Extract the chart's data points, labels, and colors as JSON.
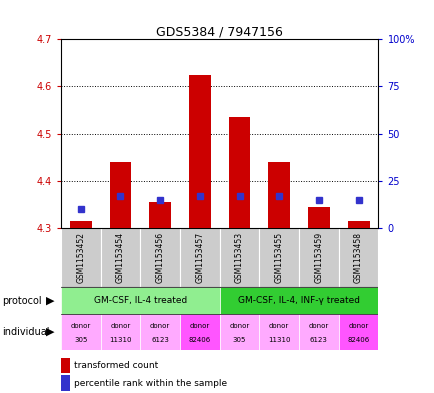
{
  "title": "GDS5384 / 7947156",
  "samples": [
    "GSM1153452",
    "GSM1153454",
    "GSM1153456",
    "GSM1153457",
    "GSM1153453",
    "GSM1153455",
    "GSM1153459",
    "GSM1153458"
  ],
  "red_values": [
    4.315,
    4.44,
    4.355,
    4.625,
    4.535,
    4.44,
    4.345,
    4.315
  ],
  "blue_values_pct": [
    10,
    17,
    15,
    17,
    17,
    17,
    15,
    15
  ],
  "ylim": [
    4.3,
    4.7
  ],
  "yticks": [
    4.3,
    4.4,
    4.5,
    4.6,
    4.7
  ],
  "y2lim": [
    0,
    100
  ],
  "y2ticks": [
    0,
    25,
    50,
    75,
    100
  ],
  "y2ticklabels": [
    "0",
    "25",
    "50",
    "75",
    "100%"
  ],
  "protocol_groups": [
    {
      "label": "GM-CSF, IL-4 treated",
      "span": [
        0,
        4
      ],
      "color": "#90EE90"
    },
    {
      "label": "GM-CSF, IL-4, INF-γ treated",
      "span": [
        4,
        8
      ],
      "color": "#32CD32"
    }
  ],
  "individuals": [
    {
      "label": "305",
      "color": "#FFAAFF"
    },
    {
      "label": "11310",
      "color": "#FFAAFF"
    },
    {
      "label": "6123",
      "color": "#FFAAFF"
    },
    {
      "label": "82406",
      "color": "#FF55FF"
    },
    {
      "label": "305",
      "color": "#FFAAFF"
    },
    {
      "label": "11310",
      "color": "#FFAAFF"
    },
    {
      "label": "6123",
      "color": "#FFAAFF"
    },
    {
      "label": "82406",
      "color": "#FF55FF"
    }
  ],
  "ybase": 4.3,
  "bar_width": 0.55,
  "blue_square_size": 40,
  "red_color": "#CC0000",
  "blue_color": "#3333CC",
  "plot_bg": "#FFFFFF",
  "ylabel_left_color": "#CC0000",
  "ylabel_right_color": "#0000CC",
  "sample_bg": "#CCCCCC"
}
